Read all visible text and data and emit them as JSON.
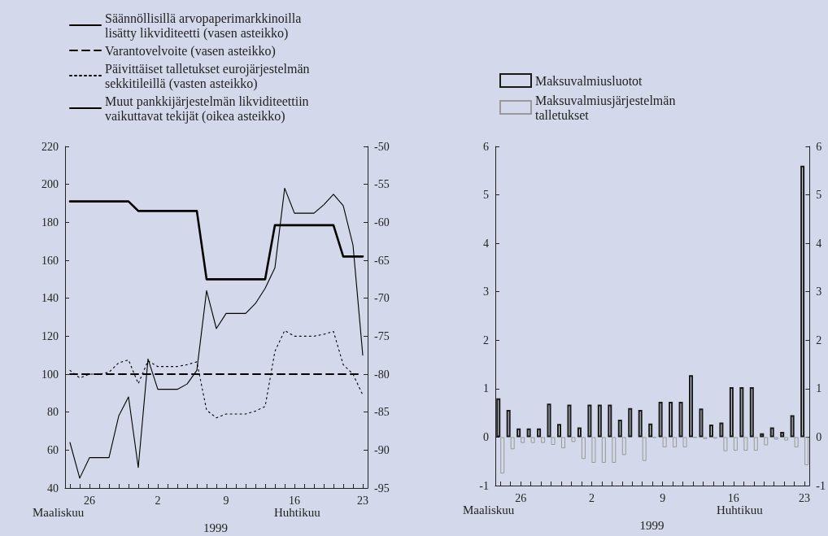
{
  "chart_data": [
    {
      "type": "line",
      "categories": [
        null,
        null,
        "26",
        null,
        null,
        null,
        null,
        null,
        null,
        "2",
        null,
        null,
        null,
        null,
        null,
        null,
        "9",
        null,
        null,
        null,
        null,
        null,
        null,
        "16",
        null,
        null,
        null,
        null,
        null,
        null,
        "23"
      ],
      "series": [
        {
          "name": "Säännöllisillä arvopaperimarkkinoilla lisätty likviditeetti (vasen asteikko)",
          "color": "#000000",
          "line_style": "solid",
          "values": [
            191,
            191,
            191,
            191,
            191,
            191,
            191,
            186,
            186,
            186,
            186,
            186,
            186,
            186,
            150,
            150,
            150,
            150,
            150,
            150,
            150,
            178.5,
            178.5,
            178.5,
            178.5,
            178.5,
            178.5,
            178.5,
            162,
            162,
            162
          ]
        },
        {
          "name": "Varantovelvoite (vasen asteikko)",
          "color": "#000000",
          "line_style": "dashed",
          "values": [
            100,
            100,
            100,
            100,
            100,
            100,
            100,
            100,
            100,
            100,
            100,
            100,
            100,
            100,
            100,
            100,
            100,
            100,
            100,
            100,
            100,
            100,
            100,
            100,
            100,
            100,
            100,
            100,
            100,
            100,
            100
          ]
        },
        {
          "name": "Päivittäiset talletukset eurojärjestelmän sekkitileillä (vasten asteikko)",
          "color": "#000000",
          "line_style": "dotted",
          "values": [
            102,
            98,
            100,
            100,
            101,
            106,
            107.5,
            95,
            107,
            104,
            104,
            104,
            105,
            106.5,
            81,
            77,
            79,
            79,
            79,
            80.5,
            83,
            112,
            123,
            120,
            120,
            120,
            121,
            122.5,
            105,
            100,
            89
          ]
        },
        {
          "name": "Muut pankkijärjestelmän likviditeettiin vaikuttavat tekijät (oikea asteikko)",
          "color": "#000000",
          "line_style": "solid",
          "axis": "y2",
          "values": [
            -89,
            -93.7,
            -91,
            -91,
            -91,
            -85.5,
            -83,
            -92.3,
            -78,
            -82,
            -82,
            -82,
            -81.3,
            -79.5,
            -69,
            -74,
            -72,
            -72,
            -72,
            -70.7,
            -68.7,
            -66,
            -55.5,
            -58.8,
            -58.8,
            -58.8,
            -57.7,
            -56.3,
            -57.8,
            -63,
            -77.5
          ]
        }
      ],
      "ylim": [
        40,
        220
      ],
      "yticks": [
        40,
        60,
        80,
        100,
        120,
        140,
        160,
        180,
        200,
        220
      ],
      "y2lim": [
        -95,
        -50
      ],
      "y2ticks": [
        -95,
        -90,
        -85,
        -80,
        -75,
        -70,
        -65,
        -60,
        -55,
        -50
      ],
      "marker": "none",
      "grid": false,
      "legend": "top",
      "annotations": [
        "Maaliskuu",
        "Huhtikuu",
        "1999"
      ]
    },
    {
      "type": "bar",
      "categories": [
        null,
        null,
        "26",
        null,
        null,
        null,
        null,
        null,
        null,
        "2",
        null,
        null,
        null,
        null,
        null,
        null,
        "9",
        null,
        null,
        null,
        null,
        null,
        null,
        "16",
        null,
        null,
        null,
        null,
        null,
        null,
        "23"
      ],
      "series": [
        {
          "name": "Maksuvalmiusluotot",
          "color": "#1a1a1a",
          "values": [
            0.8,
            0.56,
            0.18,
            0.18,
            0.18,
            0.69,
            0.27,
            0.67,
            0.2,
            0.67,
            0.67,
            0.67,
            0.36,
            0.6,
            0.56,
            0.28,
            0.73,
            0.73,
            0.73,
            1.28,
            0.59,
            0.26,
            0.3,
            1.03,
            1.03,
            1.03,
            0.08,
            0.2,
            0.11,
            0.45,
            5.6
          ]
        },
        {
          "name": "Maksuvalmiusjärjestelmän talletukset",
          "color": "#999999",
          "values": [
            -0.75,
            -0.25,
            -0.12,
            -0.12,
            -0.12,
            -0.16,
            -0.23,
            -0.1,
            -0.45,
            -0.53,
            -0.53,
            -0.53,
            -0.37,
            null,
            -0.49,
            -0.01,
            -0.21,
            -0.21,
            -0.21,
            -0.01,
            -0.04,
            -0.03,
            -0.29,
            -0.28,
            -0.28,
            -0.28,
            -0.17,
            -0.05,
            -0.07,
            -0.21,
            -0.58
          ]
        }
      ],
      "ylim": [
        -1,
        6
      ],
      "yticks": [
        -1,
        0,
        1,
        2,
        3,
        4,
        5,
        6
      ],
      "y2lim": [
        -1,
        6
      ],
      "y2ticks": [
        -1,
        0,
        1,
        2,
        3,
        4,
        5,
        6
      ],
      "grid": false,
      "legend": "top left",
      "annotations": [
        "Maaliskuu",
        "Huhtikuu",
        "1999"
      ]
    }
  ]
}
